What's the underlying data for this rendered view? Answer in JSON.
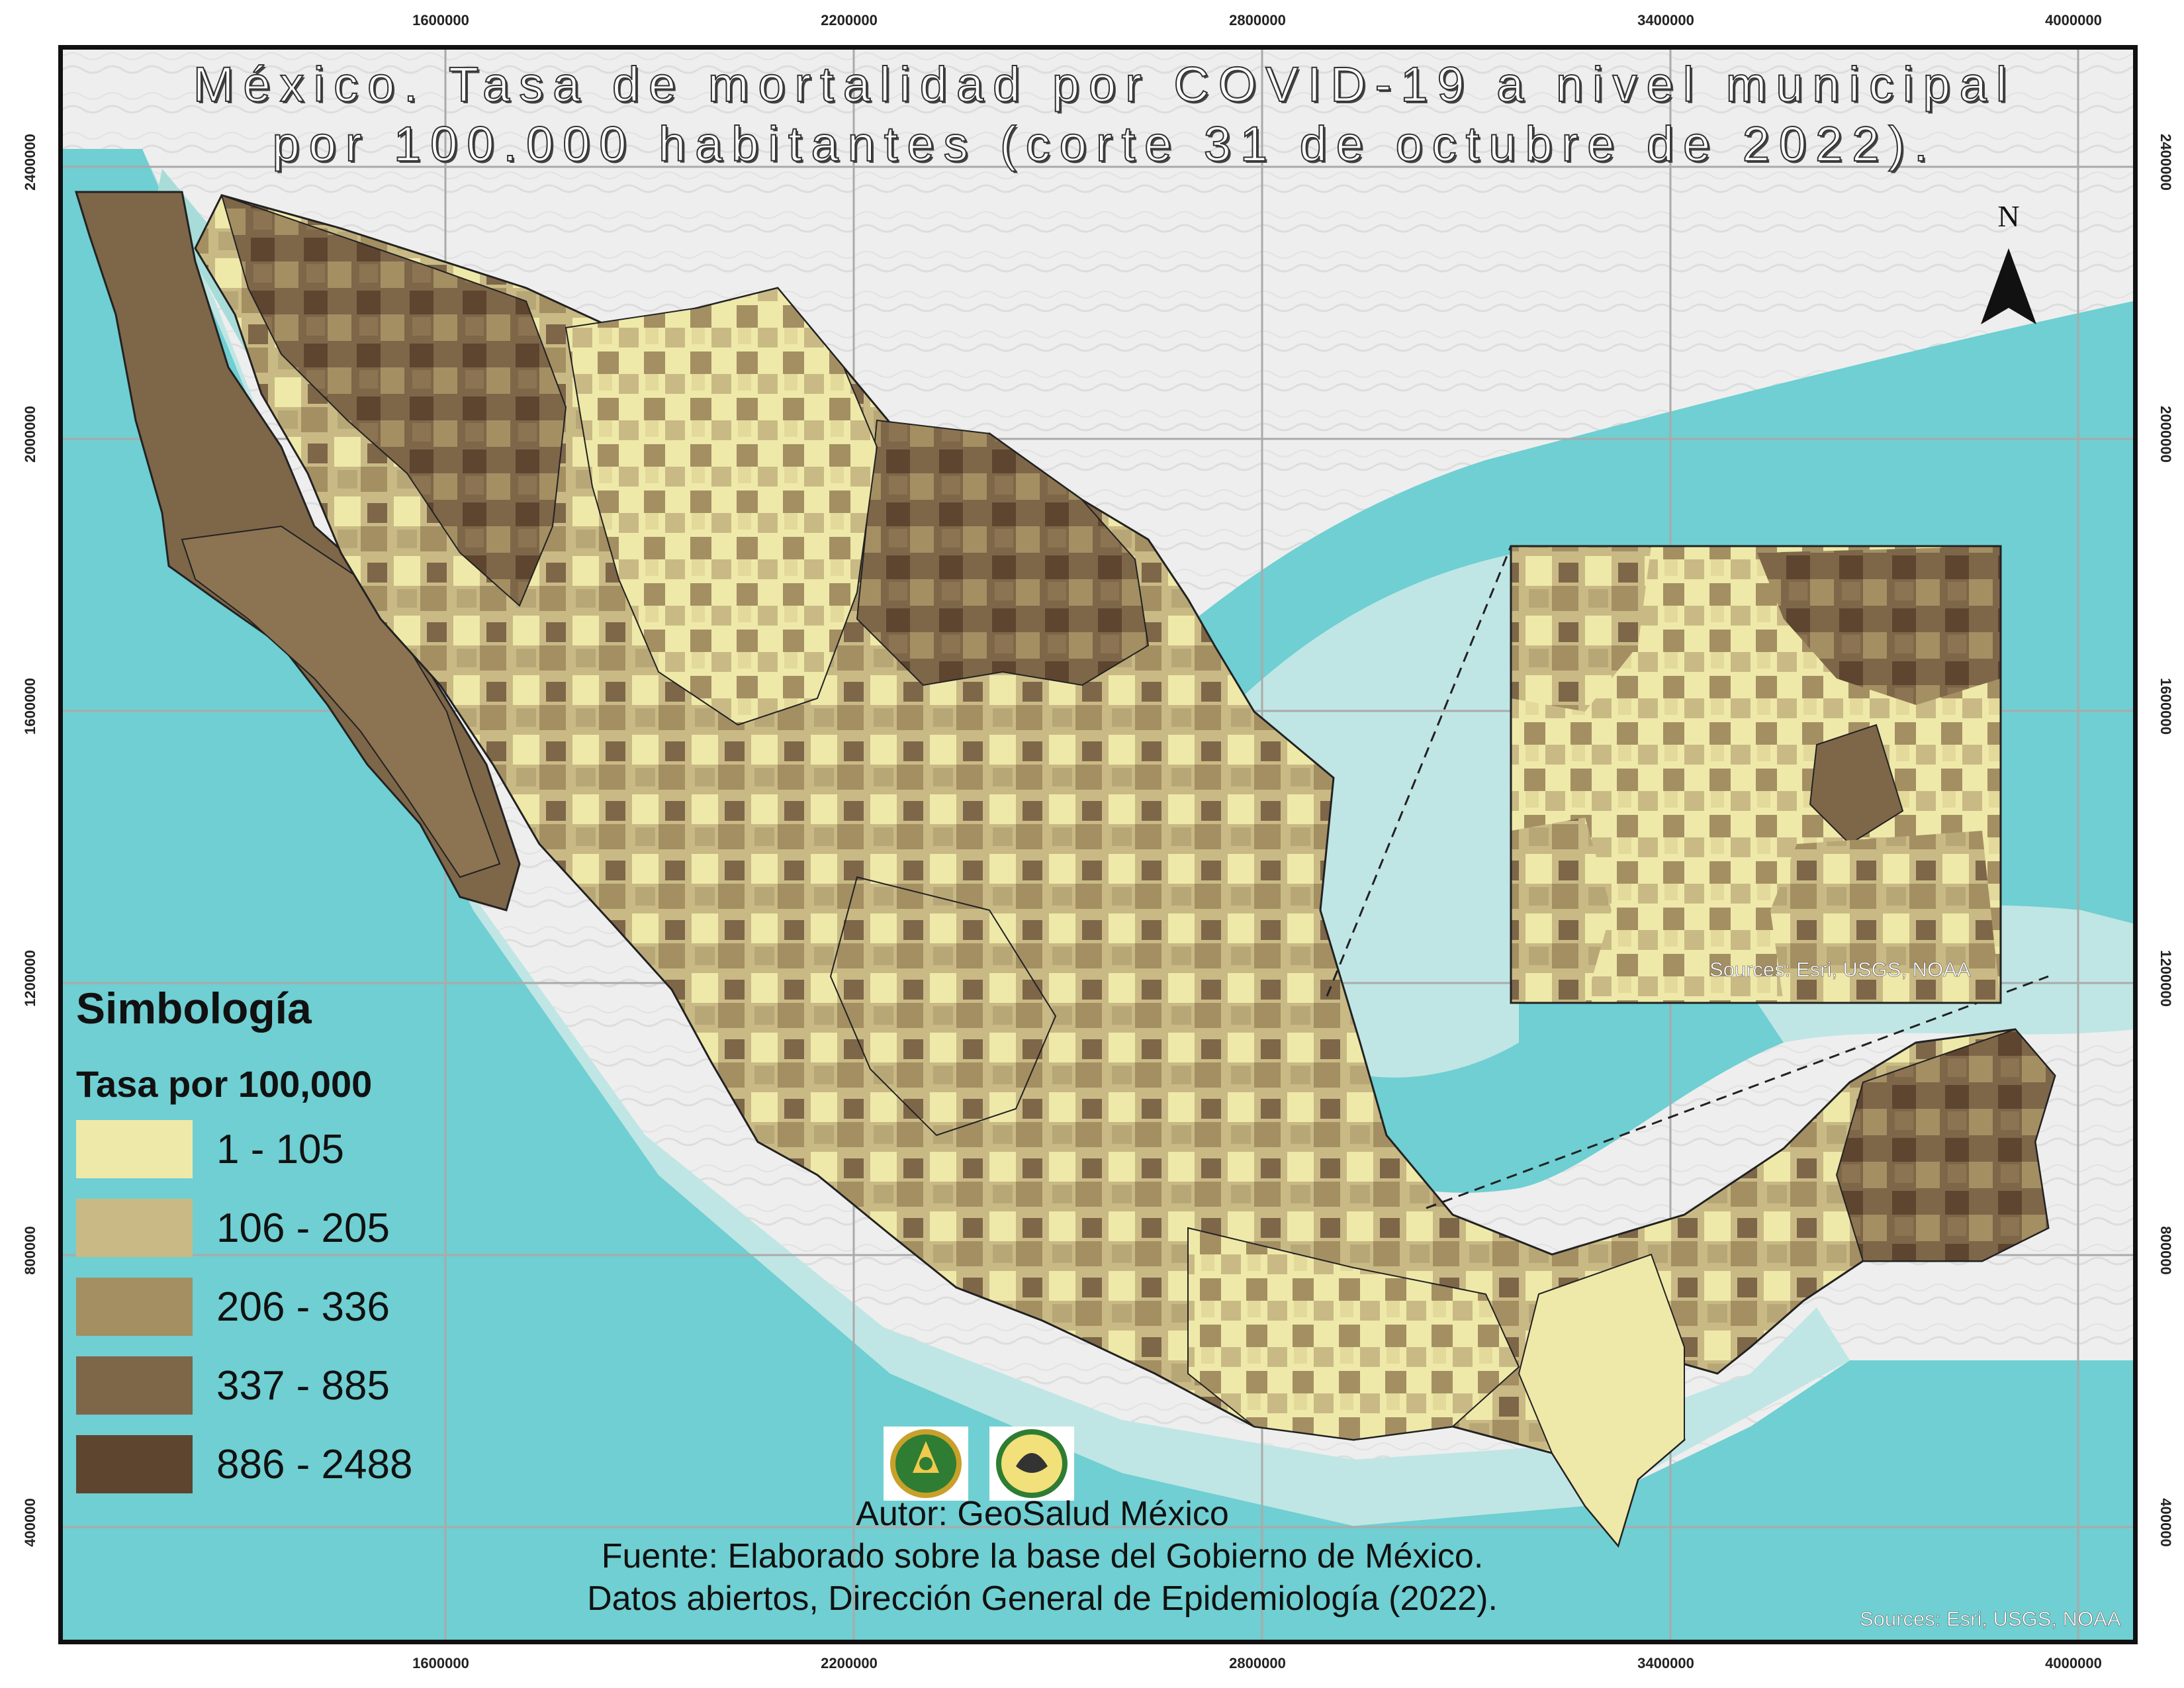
{
  "title": {
    "line1": "México. Tasa de mortalidad por COVID-19 a nivel municipal",
    "line2": "por 100.000 habitantes (corte 31 de octubre de 2022)."
  },
  "axes": {
    "x_ticks": [
      "1600000",
      "2200000",
      "2800000",
      "3400000",
      "4000000"
    ],
    "y_ticks": [
      "2400000",
      "2000000",
      "1600000",
      "1200000",
      "800000",
      "400000"
    ]
  },
  "north_arrow": {
    "label": "N",
    "icon": "north-arrow-icon"
  },
  "legend": {
    "title": "Simbología",
    "subtitle": "Tasa por 100,000",
    "classes": [
      {
        "label": "1 - 105",
        "color": "#efe9a9"
      },
      {
        "label": "106 - 205",
        "color": "#c9ba85"
      },
      {
        "label": "206 - 336",
        "color": "#a48f63"
      },
      {
        "label": "337 - 885",
        "color": "#7e6649"
      },
      {
        "label": "886 - 2488",
        "color": "#5e4530"
      }
    ]
  },
  "credits": {
    "author": "Autor: GeoSalud México",
    "source_line1": "Fuente:  Elaborado sobre la base del Gobierno de México.",
    "source_line2": "Datos abiertos, Dirección General de Epidemiología (2022)."
  },
  "inset": {
    "source": "Sources: Esri, USGS, NOAA"
  },
  "map_source": "Sources: Esri, USGS, NOAA",
  "colors": {
    "ocean_deep": "#6fcfd2",
    "ocean_shelf": "#bfe6e4",
    "land_background": "#ececec",
    "grid": "#aaaaaa"
  },
  "logos": [
    {
      "icon": "university-crest-icon"
    },
    {
      "icon": "faculty-crest-icon"
    }
  ]
}
